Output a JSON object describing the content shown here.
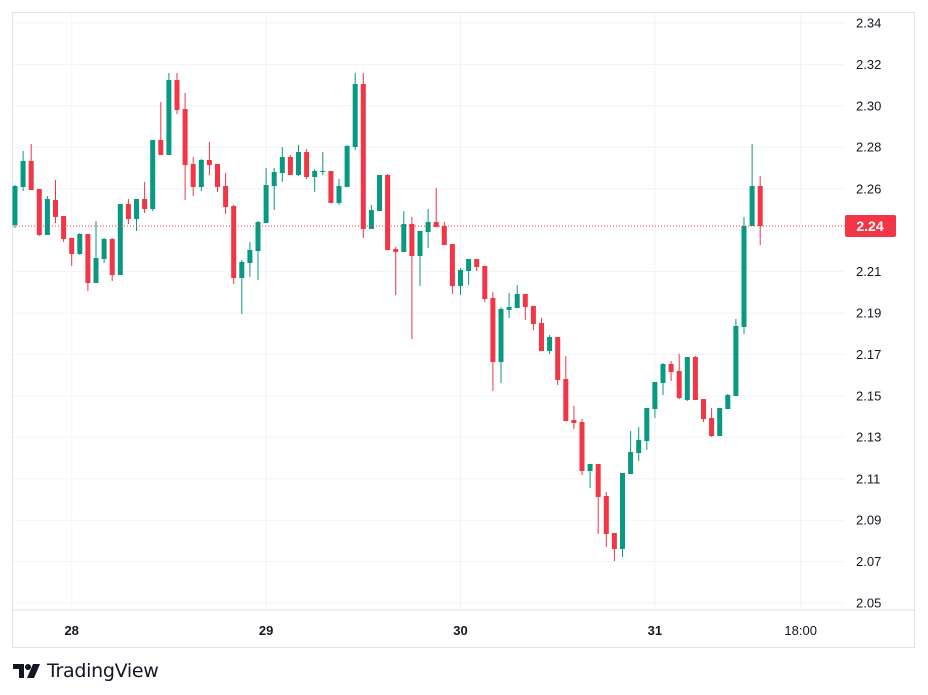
{
  "chart_data": {
    "type": "candlestick",
    "title": "",
    "xlabel": "",
    "ylabel": "",
    "interval": "1 hour",
    "ylim": [
      2.05,
      2.34
    ],
    "grid": true,
    "up_color": "#089981",
    "down_color": "#F23645",
    "last_price": 2.2385,
    "last_price_label": "2.24",
    "y_gridlines": [
      2.34,
      2.3193,
      2.2986,
      2.2779,
      2.2571,
      2.2364,
      2.2157,
      2.195,
      2.1743,
      2.1536,
      2.1329,
      2.1121,
      2.0914,
      2.0707,
      2.05
    ],
    "y_ticks": [
      {
        "value": 2.34,
        "label": "2.34"
      },
      {
        "value": 2.3193,
        "label": "2.32"
      },
      {
        "value": 2.2986,
        "label": "2.30"
      },
      {
        "value": 2.2779,
        "label": "2.28"
      },
      {
        "value": 2.2571,
        "label": "2.26"
      },
      {
        "value": 2.2157,
        "label": "2.21"
      },
      {
        "value": 2.195,
        "label": "2.19"
      },
      {
        "value": 2.1743,
        "label": "2.17"
      },
      {
        "value": 2.1536,
        "label": "2.15"
      },
      {
        "value": 2.1329,
        "label": "2.13"
      },
      {
        "value": 2.1121,
        "label": "2.11"
      },
      {
        "value": 2.0914,
        "label": "2.09"
      },
      {
        "value": 2.0707,
        "label": "2.07"
      },
      {
        "value": 2.05,
        "label": "2.05"
      }
    ],
    "x_ticks": [
      {
        "index": 7,
        "label": "28",
        "bold": true
      },
      {
        "index": 31,
        "label": "29",
        "bold": true
      },
      {
        "index": 55,
        "label": "30",
        "bold": true
      },
      {
        "index": 79,
        "label": "31",
        "bold": true
      },
      {
        "index": 97,
        "label": "18:00",
        "bold": false
      }
    ],
    "x_range": [
      -0.5,
      102.5
    ],
    "ohlc": [
      [
        2.239,
        2.259,
        2.2375,
        2.2585
      ],
      [
        2.258,
        2.276,
        2.256,
        2.271
      ],
      [
        2.271,
        2.2795,
        2.2565,
        2.2565
      ],
      [
        2.257,
        2.257,
        2.2335,
        2.234
      ],
      [
        2.234,
        2.2535,
        2.234,
        2.252
      ],
      [
        2.2515,
        2.2615,
        2.24,
        2.243
      ],
      [
        2.2435,
        2.2435,
        2.2305,
        2.232
      ],
      [
        2.2325,
        2.2325,
        2.2185,
        2.2245
      ],
      [
        2.2245,
        2.235,
        2.224,
        2.2345
      ],
      [
        2.2345,
        2.2345,
        2.206,
        2.21
      ],
      [
        2.21,
        2.241,
        2.21,
        2.2225
      ],
      [
        2.222,
        2.2325,
        2.22,
        2.232
      ],
      [
        2.232,
        2.2325,
        2.211,
        2.214
      ],
      [
        2.214,
        2.2495,
        2.214,
        2.2495
      ],
      [
        2.2495,
        2.252,
        2.2395,
        2.242
      ],
      [
        2.242,
        2.252,
        2.236,
        2.252
      ],
      [
        2.252,
        2.2605,
        2.245,
        2.247
      ],
      [
        2.247,
        2.2815,
        2.246,
        2.2815
      ],
      [
        2.2815,
        2.3005,
        2.274,
        2.274
      ],
      [
        2.274,
        2.315,
        2.274,
        2.3115
      ],
      [
        2.3115,
        2.315,
        2.2945,
        2.2965
      ],
      [
        2.297,
        2.305,
        2.2515,
        2.269
      ],
      [
        2.2695,
        2.273,
        2.2535,
        2.258
      ],
      [
        2.258,
        2.272,
        2.256,
        2.2715
      ],
      [
        2.2715,
        2.2805,
        2.264,
        2.269
      ],
      [
        2.2695,
        2.2695,
        2.2555,
        2.258
      ],
      [
        2.2585,
        2.265,
        2.2445,
        2.248
      ],
      [
        2.2485,
        2.249,
        2.2095,
        2.2125
      ],
      [
        2.2125,
        2.2215,
        2.1945,
        2.2205
      ],
      [
        2.22,
        2.2305,
        2.213,
        2.2265
      ],
      [
        2.226,
        2.241,
        2.2115,
        2.2405
      ],
      [
        2.24,
        2.2675,
        2.24,
        2.259
      ],
      [
        2.2585,
        2.2675,
        2.2465,
        2.2655
      ],
      [
        2.265,
        2.278,
        2.2605,
        2.273
      ],
      [
        2.273,
        2.274,
        2.264,
        2.264
      ],
      [
        2.264,
        2.279,
        2.2635,
        2.2755
      ],
      [
        2.2755,
        2.277,
        2.262,
        2.263
      ],
      [
        2.263,
        2.267,
        2.2555,
        2.266
      ],
      [
        2.2655,
        2.2755,
        2.264,
        2.266
      ],
      [
        2.266,
        2.266,
        2.25,
        2.25
      ],
      [
        2.25,
        2.262,
        2.249,
        2.2585
      ],
      [
        2.258,
        2.279,
        2.258,
        2.2785
      ],
      [
        2.278,
        2.315,
        2.2765,
        2.3095
      ],
      [
        2.3095,
        2.315,
        2.2325,
        2.237
      ],
      [
        2.237,
        2.249,
        2.237,
        2.2465
      ],
      [
        2.246,
        2.264,
        2.246,
        2.264
      ],
      [
        2.264,
        2.2645,
        2.2265,
        2.2265
      ],
      [
        2.227,
        2.228,
        2.204,
        2.2255
      ],
      [
        2.2255,
        2.246,
        2.2255,
        2.2395
      ],
      [
        2.2395,
        2.243,
        2.182,
        2.2235
      ],
      [
        2.2235,
        2.236,
        2.2085,
        2.236
      ],
      [
        2.2355,
        2.247,
        2.2275,
        2.2405
      ],
      [
        2.2405,
        2.2575,
        2.238,
        2.238
      ],
      [
        2.2385,
        2.2405,
        2.229,
        2.229
      ],
      [
        2.2295,
        2.2295,
        2.2045,
        2.2085
      ],
      [
        2.2085,
        2.2175,
        2.204,
        2.2165
      ],
      [
        2.216,
        2.222,
        2.209,
        2.222
      ],
      [
        2.222,
        2.222,
        2.216,
        2.218
      ],
      [
        2.2185,
        2.2185,
        2.2005,
        2.202
      ],
      [
        2.2025,
        2.2055,
        2.156,
        2.1705
      ],
      [
        2.1705,
        2.198,
        2.16,
        2.197
      ],
      [
        2.1965,
        2.205,
        2.1925,
        2.198
      ],
      [
        2.1975,
        2.209,
        2.1975,
        2.2045
      ],
      [
        2.2045,
        2.2045,
        2.1915,
        2.198
      ],
      [
        2.1985,
        2.1985,
        2.1865,
        2.1895
      ],
      [
        2.19,
        2.1925,
        2.176,
        2.176
      ],
      [
        2.176,
        2.184,
        2.1745,
        2.183
      ],
      [
        2.183,
        2.183,
        2.159,
        2.1615
      ],
      [
        2.162,
        2.1735,
        2.141,
        2.141
      ],
      [
        2.1415,
        2.1485,
        2.137,
        2.14
      ],
      [
        2.1405,
        2.142,
        2.114,
        2.116
      ],
      [
        2.116,
        2.1195,
        2.1075,
        2.1195
      ],
      [
        2.1195,
        2.1195,
        2.0845,
        2.103
      ],
      [
        2.1035,
        2.1055,
        2.078,
        2.0845
      ],
      [
        2.085,
        2.085,
        2.071,
        2.077
      ],
      [
        2.077,
        2.115,
        2.073,
        2.115
      ],
      [
        2.1145,
        2.136,
        2.1145,
        2.1255
      ],
      [
        2.125,
        2.138,
        2.121,
        2.1315
      ],
      [
        2.131,
        2.1475,
        2.1265,
        2.1475
      ],
      [
        2.147,
        2.1605,
        2.1425,
        2.1605
      ],
      [
        2.16,
        2.17,
        2.154,
        2.1695
      ],
      [
        2.1695,
        2.171,
        2.161,
        2.1655
      ],
      [
        2.166,
        2.1745,
        2.152,
        2.1525
      ],
      [
        2.1515,
        2.173,
        2.151,
        2.173
      ],
      [
        2.173,
        2.1735,
        2.1515,
        2.1515
      ],
      [
        2.152,
        2.152,
        2.1405,
        2.142
      ],
      [
        2.1425,
        2.1475,
        2.133,
        2.1335
      ],
      [
        2.1335,
        2.1475,
        2.1335,
        2.1475
      ],
      [
        2.147,
        2.1545,
        2.147,
        2.154
      ],
      [
        2.1535,
        2.192,
        2.1535,
        2.1885
      ],
      [
        2.188,
        2.243,
        2.1845,
        2.2385
      ],
      [
        2.2385,
        2.2795,
        2.2385,
        2.2585
      ],
      [
        2.2585,
        2.2635,
        2.229,
        2.2385
      ]
    ]
  },
  "branding": {
    "logo_text": "TradingView"
  }
}
